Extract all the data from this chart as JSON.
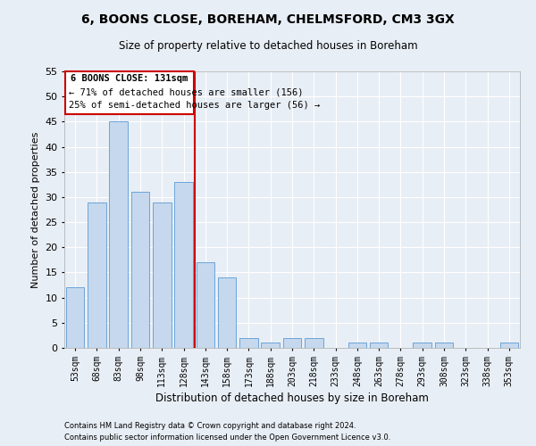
{
  "title1": "6, BOONS CLOSE, BOREHAM, CHELMSFORD, CM3 3GX",
  "title2": "Size of property relative to detached houses in Boreham",
  "xlabel": "Distribution of detached houses by size in Boreham",
  "ylabel": "Number of detached properties",
  "categories": [
    "53sqm",
    "68sqm",
    "83sqm",
    "98sqm",
    "113sqm",
    "128sqm",
    "143sqm",
    "158sqm",
    "173sqm",
    "188sqm",
    "203sqm",
    "218sqm",
    "233sqm",
    "248sqm",
    "263sqm",
    "278sqm",
    "293sqm",
    "308sqm",
    "323sqm",
    "338sqm",
    "353sqm"
  ],
  "values": [
    12,
    29,
    45,
    31,
    29,
    33,
    17,
    14,
    2,
    1,
    2,
    2,
    0,
    1,
    1,
    0,
    1,
    1,
    0,
    0,
    1
  ],
  "bar_color": "#c5d8ed",
  "bar_edge_color": "#5b9bd5",
  "vline_x": 5.5,
  "ylim": [
    0,
    55
  ],
  "yticks": [
    0,
    5,
    10,
    15,
    20,
    25,
    30,
    35,
    40,
    45,
    50,
    55
  ],
  "annotation_title": "6 BOONS CLOSE: 131sqm",
  "annotation_line1": "← 71% of detached houses are smaller (156)",
  "annotation_line2": "25% of semi-detached houses are larger (56) →",
  "annotation_box_color": "#ffffff",
  "annotation_box_edge": "#cc0000",
  "vline_color": "#cc0000",
  "footer1": "Contains HM Land Registry data © Crown copyright and database right 2024.",
  "footer2": "Contains public sector information licensed under the Open Government Licence v3.0.",
  "background_color": "#e8eef5",
  "grid_color": "#ffffff"
}
